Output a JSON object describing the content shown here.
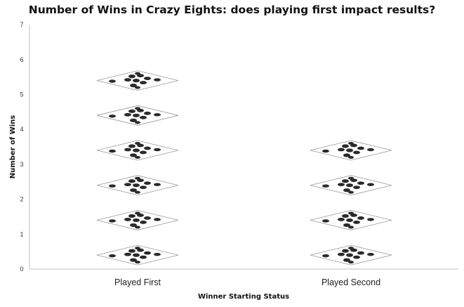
{
  "chart_data": {
    "type": "bar",
    "title": "Number of Wins in Crazy Eights: does playing first impact results?",
    "categories": [
      "Played First",
      "Played Second"
    ],
    "values": [
      6,
      4
    ],
    "xlabel": "Winner Starting Status",
    "ylabel": "Number of Wins",
    "ylim": [
      0,
      7
    ],
    "yticks": [
      0,
      1,
      2,
      3,
      4,
      5,
      6,
      7
    ],
    "grid": false,
    "marker": "playing-card-pictograph",
    "colors": {
      "axis": "#bfbfbf",
      "card_border": "#9a9a9a",
      "pip": "#2a2a2a",
      "text": "#111111"
    }
  }
}
